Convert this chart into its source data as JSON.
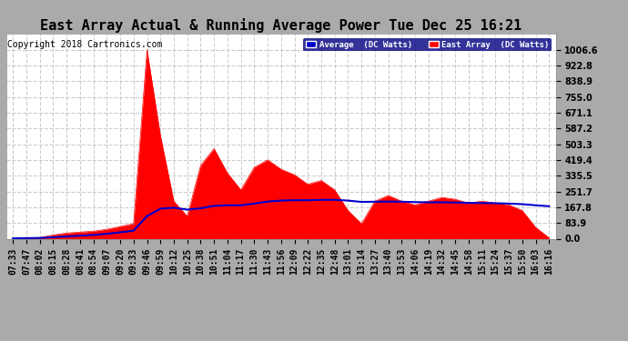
{
  "title": "East Array Actual & Running Average Power Tue Dec 25 16:21",
  "copyright": "Copyright 2018 Cartronics.com",
  "ylim": [
    0,
    1090
  ],
  "yticks": [
    0.0,
    83.9,
    167.8,
    251.7,
    335.5,
    419.4,
    503.3,
    587.2,
    671.1,
    755.0,
    838.9,
    922.8,
    1006.6
  ],
  "ytick_labels": [
    "0.0",
    "83.9",
    "167.8",
    "251.7",
    "335.5",
    "419.4",
    "503.3",
    "587.2",
    "671.1",
    "755.0",
    "838.9",
    "922.8",
    "1006.6"
  ],
  "background_color": "#aaaaaa",
  "plot_background": "#ffffff",
  "grid_color": "#cccccc",
  "east_array_color": "#ff0000",
  "average_color": "#0000cc",
  "x_labels": [
    "07:33",
    "07:47",
    "08:02",
    "08:15",
    "08:28",
    "08:41",
    "08:54",
    "09:07",
    "09:20",
    "09:33",
    "09:46",
    "09:59",
    "10:12",
    "10:25",
    "10:38",
    "10:51",
    "11:04",
    "11:17",
    "11:30",
    "11:43",
    "11:56",
    "12:09",
    "12:22",
    "12:35",
    "12:48",
    "13:01",
    "13:14",
    "13:27",
    "13:40",
    "13:53",
    "14:06",
    "14:19",
    "14:32",
    "14:45",
    "14:58",
    "15:11",
    "15:24",
    "15:37",
    "15:50",
    "16:03",
    "16:16"
  ],
  "east_array": [
    2,
    4,
    6,
    20,
    30,
    35,
    40,
    50,
    65,
    80,
    1006,
    550,
    200,
    120,
    390,
    480,
    350,
    260,
    380,
    420,
    370,
    340,
    290,
    310,
    260,
    150,
    80,
    200,
    230,
    200,
    180,
    200,
    220,
    210,
    190,
    200,
    190,
    180,
    150,
    60,
    5
  ],
  "avg_line": [
    2,
    3,
    4,
    8,
    12,
    16,
    20,
    26,
    34,
    43,
    120,
    160,
    165,
    155,
    162,
    175,
    178,
    178,
    187,
    198,
    203,
    205,
    205,
    207,
    207,
    203,
    196,
    197,
    198,
    197,
    195,
    194,
    194,
    193,
    191,
    190,
    189,
    187,
    184,
    178,
    173
  ],
  "title_fontsize": 11,
  "tick_fontsize": 7,
  "copyright_fontsize": 7,
  "num_points": 41
}
